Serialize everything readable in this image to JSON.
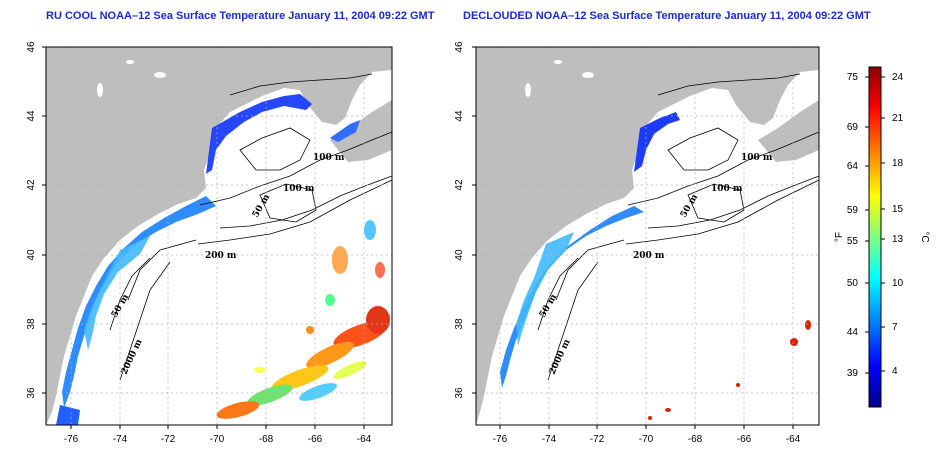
{
  "maps": [
    {
      "title": "RU COOL NOAA–12 Sea Surface Temperature January 11, 2004 09:22 GMT",
      "x_ticks": [
        "-76",
        "-74",
        "-72",
        "-70",
        "-68",
        "-66",
        "-64"
      ],
      "y_ticks": [
        "36",
        "38",
        "40",
        "42",
        "44",
        "46"
      ],
      "contour_labels": [
        "100 m",
        "100 m",
        "50 m",
        "200 m",
        "50 m",
        "2000 m"
      ]
    },
    {
      "title": "DECLOUDED NOAA–12 Sea Surface Temperature January 11, 2004 09:22 GMT",
      "x_ticks": [
        "-76",
        "-74",
        "-72",
        "-70",
        "-68",
        "-66",
        "-64"
      ],
      "y_ticks": [
        "36",
        "38",
        "40",
        "42",
        "44",
        "46"
      ],
      "contour_labels": [
        "100 m",
        "100 m",
        "50 m",
        "200 m",
        "50 m",
        "2000 m"
      ]
    }
  ],
  "colorbar": {
    "fahrenheit_label": "°F",
    "celsius_label": "°C",
    "fahrenheit_ticks": [
      "75",
      "69",
      "64",
      "59",
      "55",
      "50",
      "44",
      "39"
    ],
    "celsius_ticks": [
      "24",
      "21",
      "18",
      "15",
      "13",
      "10",
      "7",
      "4"
    ],
    "colors": [
      "#00008b",
      "#0000ff",
      "#0080ff",
      "#00ffff",
      "#80ff80",
      "#ffff00",
      "#ff8000",
      "#ff0000",
      "#8b0000"
    ]
  },
  "colors": {
    "land": "#bebebe",
    "title": "#1a2cc8",
    "grid": "#b4b4b4"
  }
}
